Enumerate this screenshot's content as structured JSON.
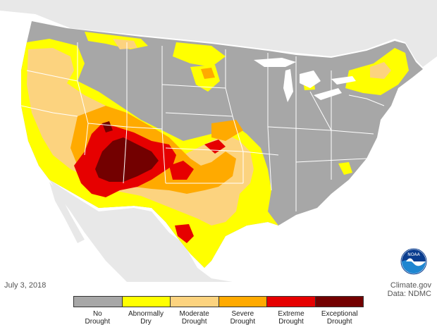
{
  "date": "July 3, 2018",
  "credit": {
    "source": "Climate.gov",
    "data": "Data: NDMC"
  },
  "logo": {
    "text": "NOAA"
  },
  "legend": [
    {
      "line1": "No",
      "line2": "Drought",
      "color": "#a7a7a7"
    },
    {
      "line1": "Abnormally",
      "line2": "Dry",
      "color": "#ffff00"
    },
    {
      "line1": "Moderate",
      "line2": "Drought",
      "color": "#fcd37f"
    },
    {
      "line1": "Severe",
      "line2": "Drought",
      "color": "#ffaa00"
    },
    {
      "line1": "Extreme",
      "line2": "Drought",
      "color": "#e60000"
    },
    {
      "line1": "Exceptional",
      "line2": "Drought",
      "color": "#730000"
    }
  ],
  "colors": {
    "background_land": "#e8e8e8",
    "ocean": "#ffffff",
    "state_border": "#ffffff"
  }
}
